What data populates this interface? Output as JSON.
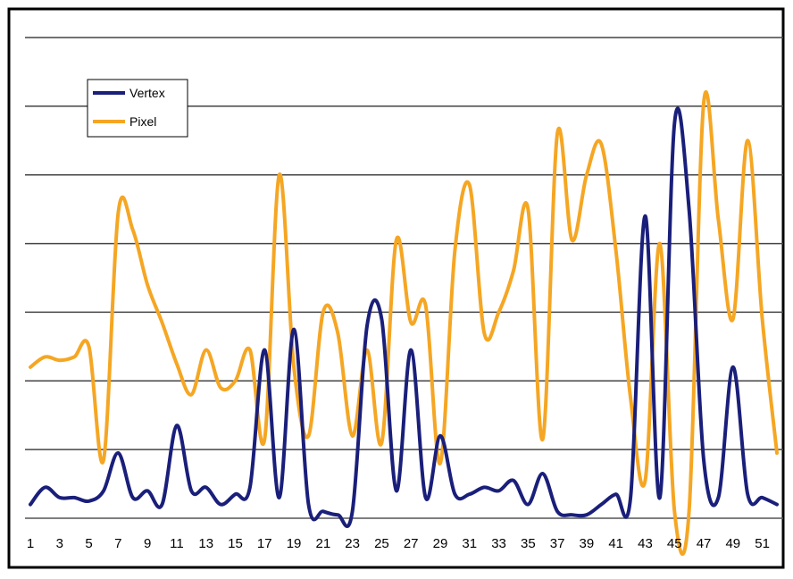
{
  "chart_data": {
    "type": "line",
    "title": "",
    "xlabel": "",
    "ylabel": "",
    "x_tick_labels": [
      "1",
      "3",
      "5",
      "7",
      "9",
      "11",
      "13",
      "15",
      "17",
      "19",
      "21",
      "23",
      "25",
      "27",
      "29",
      "31",
      "33",
      "35",
      "37",
      "39",
      "41",
      "43",
      "45",
      "47",
      "49",
      "51"
    ],
    "x_range": [
      1,
      52
    ],
    "ylim": [
      0,
      7
    ],
    "grid": "horizontal",
    "legend_position": "top-left",
    "series": [
      {
        "name": "Vertex",
        "color": "#1a1f7a",
        "values": [
          0.2,
          0.45,
          0.3,
          0.3,
          0.25,
          0.4,
          0.95,
          0.3,
          0.4,
          0.2,
          1.35,
          0.4,
          0.45,
          0.2,
          0.35,
          0.45,
          2.45,
          0.3,
          2.75,
          0.2,
          0.1,
          0.05,
          0.1,
          2.8,
          2.9,
          0.4,
          2.45,
          0.3,
          1.2,
          0.35,
          0.35,
          0.45,
          0.4,
          0.55,
          0.2,
          0.65,
          0.1,
          0.05,
          0.05,
          0.2,
          0.35,
          0.3,
          4.4,
          0.3,
          5.75,
          4.5,
          0.85,
          0.3,
          2.2,
          0.35,
          0.3,
          0.2
        ]
      },
      {
        "name": "Pixel",
        "color": "#f5a623",
        "values": [
          2.2,
          2.35,
          2.3,
          2.35,
          2.5,
          0.85,
          4.45,
          4.2,
          3.4,
          2.85,
          2.25,
          1.8,
          2.45,
          1.9,
          2.0,
          2.45,
          1.15,
          5.0,
          2.2,
          1.2,
          3.0,
          2.7,
          1.2,
          2.45,
          1.1,
          4.05,
          2.85,
          3.1,
          0.8,
          3.9,
          4.85,
          2.7,
          3.0,
          3.6,
          4.5,
          1.15,
          5.6,
          4.05,
          5.0,
          5.45,
          3.9,
          1.75,
          0.55,
          4.0,
          0.1,
          0.1,
          6.05,
          4.35,
          2.9,
          5.5,
          2.9,
          0.95
        ]
      }
    ]
  }
}
